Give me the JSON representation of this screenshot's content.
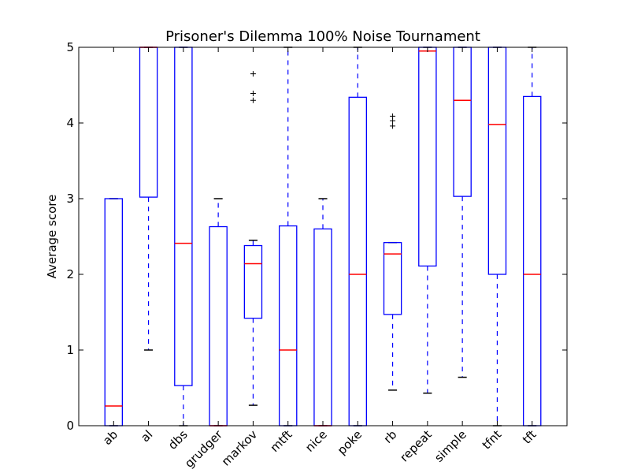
{
  "chart_data": {
    "type": "box",
    "title": "Prisoner's Dilemma 100% Noise Tournament",
    "xlabel": "",
    "ylabel": "Average score",
    "ylim": [
      0,
      5
    ],
    "yticks": [
      "0",
      "1",
      "2",
      "3",
      "4",
      "5"
    ],
    "grid": false,
    "colors": {
      "box": "#0000ff",
      "median": "#ff0000",
      "whisker": "#0000ff",
      "cap": "#000000",
      "flier": "#000000"
    },
    "categories": [
      "ab",
      "al",
      "dbs",
      "grudger",
      "markov",
      "mtft",
      "nice",
      "poke",
      "rb",
      "repeat",
      "simple",
      "tfnt",
      "tft"
    ],
    "boxes": [
      {
        "name": "ab",
        "whislo": 0,
        "q1": 0,
        "med": 0.26,
        "q3": 3.0,
        "whishi": 3.0,
        "fliers": []
      },
      {
        "name": "al",
        "whislo": 1.0,
        "q1": 3.02,
        "med": 5.0,
        "q3": 5.0,
        "whishi": 5.0,
        "fliers": []
      },
      {
        "name": "dbs",
        "whislo": 0,
        "q1": 0.53,
        "med": 2.41,
        "q3": 5.0,
        "whishi": 5.0,
        "fliers": []
      },
      {
        "name": "grudger",
        "whislo": 0,
        "q1": 0,
        "med": 0,
        "q3": 2.63,
        "whishi": 3.0,
        "fliers": []
      },
      {
        "name": "markov",
        "whislo": 0.27,
        "q1": 1.42,
        "med": 2.14,
        "q3": 2.38,
        "whishi": 2.45,
        "fliers": [
          4.3,
          4.39,
          4.65
        ]
      },
      {
        "name": "mtft",
        "whislo": 0,
        "q1": 0,
        "med": 1.0,
        "q3": 2.64,
        "whishi": 5.0,
        "fliers": []
      },
      {
        "name": "nice",
        "whislo": 0,
        "q1": 0,
        "med": 0,
        "q3": 2.6,
        "whishi": 3.0,
        "fliers": []
      },
      {
        "name": "poke",
        "whislo": 0,
        "q1": 0,
        "med": 2.0,
        "q3": 4.34,
        "whishi": 5.0,
        "fliers": []
      },
      {
        "name": "rb",
        "whislo": 0.47,
        "q1": 1.47,
        "med": 2.27,
        "q3": 2.42,
        "whishi": 2.42,
        "fliers": [
          3.96,
          4.03,
          4.09
        ]
      },
      {
        "name": "repeat",
        "whislo": 0.43,
        "q1": 2.11,
        "med": 4.95,
        "q3": 5.0,
        "whishi": 5.0,
        "fliers": []
      },
      {
        "name": "simple",
        "whislo": 0.64,
        "q1": 3.03,
        "med": 4.3,
        "q3": 5.0,
        "whishi": 5.0,
        "fliers": []
      },
      {
        "name": "tfnt",
        "whislo": 0,
        "q1": 2.0,
        "med": 3.98,
        "q3": 5.0,
        "whishi": 5.0,
        "fliers": []
      },
      {
        "name": "tft",
        "whislo": 0,
        "q1": 0,
        "med": 2.0,
        "q3": 4.35,
        "whishi": 5.0,
        "fliers": []
      }
    ]
  }
}
